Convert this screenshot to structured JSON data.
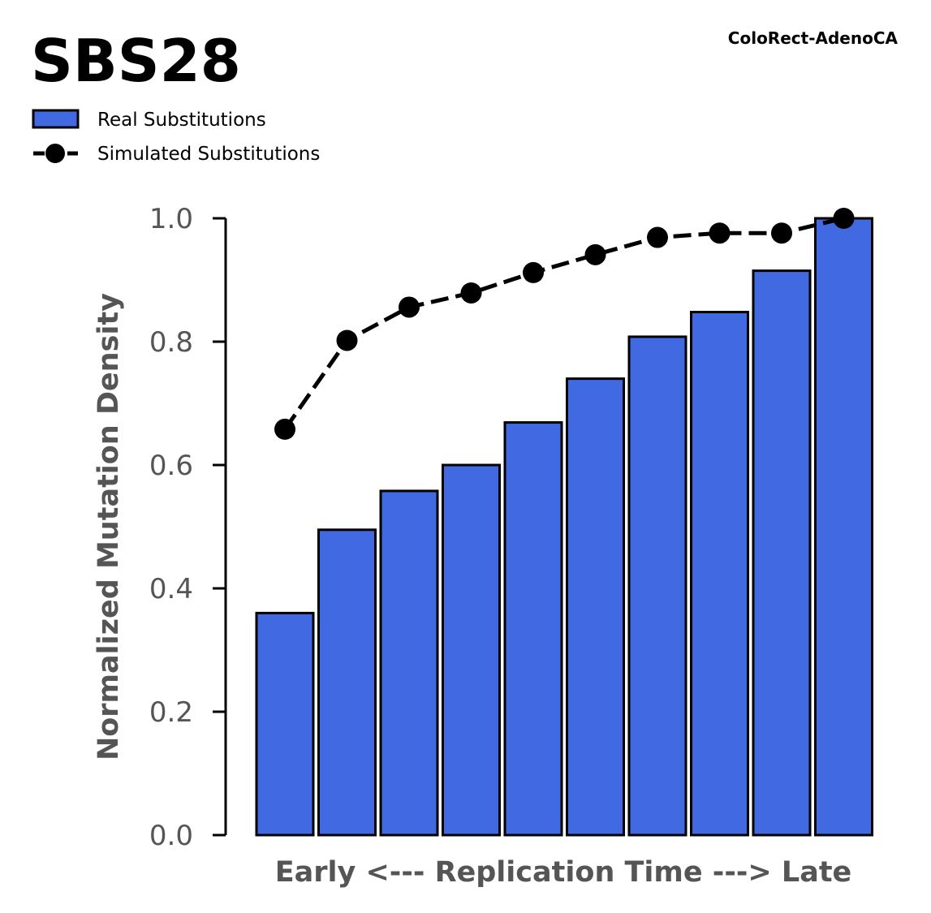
{
  "chart_data": {
    "type": "bar",
    "title": "SBS28",
    "subtitle": "ColoRect-AdenoCA",
    "xlabel": "Early <--- Replication Time ---> Late",
    "ylabel": "Normalized Mutation Density",
    "ylim": [
      0,
      1.0
    ],
    "yticks": [
      "0.0",
      "0.2",
      "0.4",
      "0.6",
      "0.8",
      "1.0"
    ],
    "grid": false,
    "legend_position": "top-left",
    "series": [
      {
        "name": "Real Substitutions",
        "kind": "bar",
        "color": "#4169E1",
        "values": [
          0.36,
          0.495,
          0.558,
          0.6,
          0.669,
          0.74,
          0.808,
          0.848,
          0.915,
          1.0
        ]
      },
      {
        "name": "Simulated Substitutions",
        "kind": "line",
        "style": "dashed",
        "marker": "circle",
        "color": "#000000",
        "values": [
          0.658,
          0.802,
          0.856,
          0.879,
          0.912,
          0.941,
          0.969,
          0.976,
          0.976,
          1.0
        ]
      }
    ]
  }
}
